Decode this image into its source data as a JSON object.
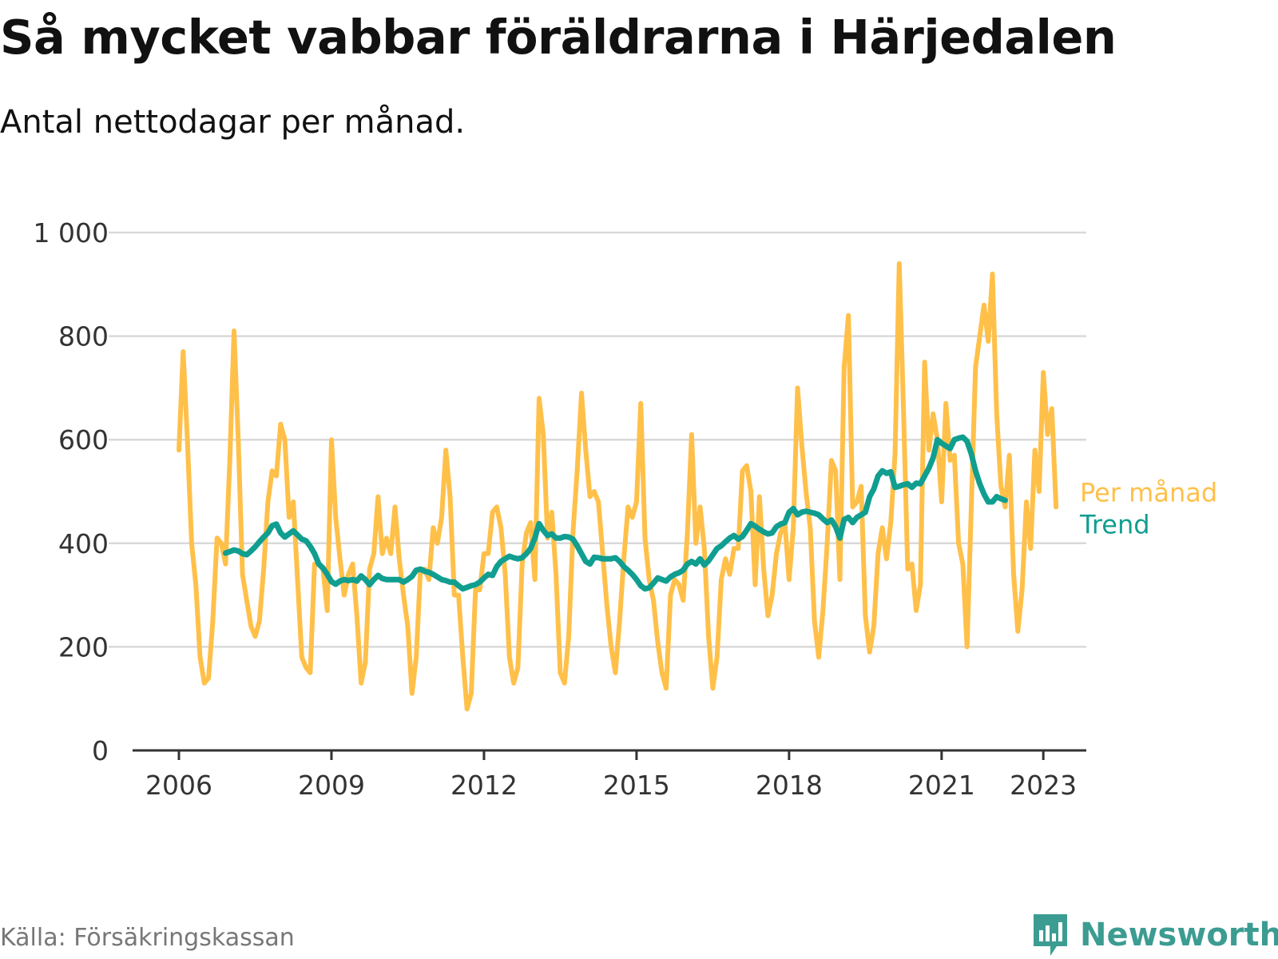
{
  "header": {
    "title": "Så mycket vabbar föräldrarna i Härjedalen",
    "subtitle": "Antal nettodagar per månad."
  },
  "footer": {
    "source": "Källa: Försäkringskassan",
    "brand": "Newsworthy"
  },
  "colors": {
    "monthly": "#ffc04a",
    "trend": "#109e90",
    "grid": "#d9d9d9",
    "axis": "#333333",
    "brand": "#3c9c92"
  },
  "chart_data": {
    "type": "line",
    "title": "Så mycket vabbar föräldrarna i Härjedalen",
    "subtitle": "Antal nettodagar per månad.",
    "xlabel": "",
    "ylabel": "",
    "ylim": [
      0,
      1000
    ],
    "xlim": [
      2006.0,
      2023.5
    ],
    "yticks": [
      0,
      200,
      400,
      600,
      800,
      1000
    ],
    "ytick_labels": [
      "0",
      "200",
      "400",
      "600",
      "800",
      "1 000"
    ],
    "xticks": [
      2006,
      2009,
      2012,
      2015,
      2018,
      2021,
      2023
    ],
    "xtick_labels": [
      "2006",
      "2009",
      "2012",
      "2015",
      "2018",
      "2021",
      "2023"
    ],
    "grid": true,
    "legend_placement": "right-end",
    "series": [
      {
        "name": "Per månad",
        "start": 2006.0,
        "step": 0.0833333,
        "values": [
          580,
          770,
          600,
          400,
          320,
          180,
          130,
          140,
          250,
          410,
          400,
          360,
          560,
          810,
          600,
          340,
          290,
          240,
          220,
          250,
          350,
          480,
          540,
          530,
          630,
          600,
          450,
          480,
          330,
          180,
          160,
          150,
          360,
          360,
          350,
          270,
          600,
          450,
          370,
          300,
          340,
          360,
          260,
          130,
          170,
          350,
          380,
          490,
          380,
          410,
          380,
          470,
          370,
          300,
          240,
          110,
          180,
          350,
          350,
          330,
          430,
          400,
          450,
          580,
          490,
          300,
          300,
          180,
          80,
          110,
          310,
          310,
          380,
          380,
          460,
          470,
          430,
          340,
          180,
          130,
          160,
          360,
          420,
          440,
          330,
          680,
          610,
          410,
          460,
          340,
          150,
          130,
          220,
          420,
          540,
          690,
          580,
          490,
          500,
          480,
          380,
          280,
          200,
          150,
          250,
          370,
          470,
          450,
          480,
          670,
          410,
          330,
          290,
          210,
          150,
          120,
          300,
          330,
          320,
          290,
          420,
          610,
          400,
          470,
          390,
          220,
          120,
          180,
          330,
          370,
          340,
          390,
          390,
          540,
          550,
          500,
          320,
          490,
          350,
          260,
          300,
          380,
          420,
          440,
          330,
          430,
          700,
          590,
          500,
          430,
          250,
          180,
          270,
          400,
          560,
          540,
          330,
          740,
          840,
          470,
          480,
          510,
          260,
          190,
          240,
          380,
          430,
          370,
          440,
          570,
          940,
          660,
          350,
          360,
          270,
          320,
          750,
          580,
          650,
          600,
          480,
          670,
          560,
          570,
          400,
          360,
          200,
          470,
          740,
          800,
          860,
          790,
          920,
          650,
          510,
          470,
          570,
          340,
          230,
          310,
          480,
          390,
          580,
          500,
          730,
          610,
          660,
          470
        ]
      },
      {
        "name": "Trend",
        "start": 2006.9167,
        "step": 0.0833333,
        "values": [
          381,
          384,
          387,
          385,
          380,
          378,
          385,
          393,
          403,
          412,
          420,
          434,
          437,
          420,
          412,
          418,
          424,
          416,
          408,
          405,
          394,
          380,
          360,
          352,
          340,
          326,
          321,
          327,
          330,
          328,
          330,
          327,
          337,
          330,
          320,
          330,
          338,
          332,
          330,
          330,
          330,
          330,
          325,
          330,
          336,
          348,
          350,
          346,
          344,
          340,
          335,
          330,
          328,
          325,
          325,
          318,
          312,
          315,
          318,
          320,
          325,
          333,
          340,
          338,
          355,
          365,
          370,
          375,
          372,
          370,
          372,
          380,
          390,
          410,
          438,
          425,
          415,
          418,
          410,
          410,
          413,
          412,
          408,
          395,
          380,
          365,
          360,
          373,
          372,
          370,
          370,
          370,
          372,
          365,
          355,
          348,
          340,
          330,
          318,
          312,
          314,
          323,
          333,
          330,
          327,
          335,
          340,
          343,
          348,
          360,
          365,
          360,
          370,
          358,
          366,
          378,
          390,
          395,
          403,
          410,
          415,
          408,
          413,
          425,
          438,
          433,
          427,
          422,
          418,
          420,
          432,
          437,
          440,
          460,
          467,
          455,
          460,
          462,
          460,
          458,
          455,
          447,
          440,
          445,
          432,
          410,
          446,
          450,
          440,
          450,
          455,
          460,
          490,
          505,
          530,
          540,
          535,
          538,
          508,
          510,
          513,
          515,
          508,
          516,
          515,
          530,
          545,
          565,
          600,
          593,
          588,
          583,
          600,
          603,
          605,
          597,
          573,
          540,
          515,
          495,
          480,
          480,
          490,
          486,
          483
        ]
      }
    ]
  }
}
